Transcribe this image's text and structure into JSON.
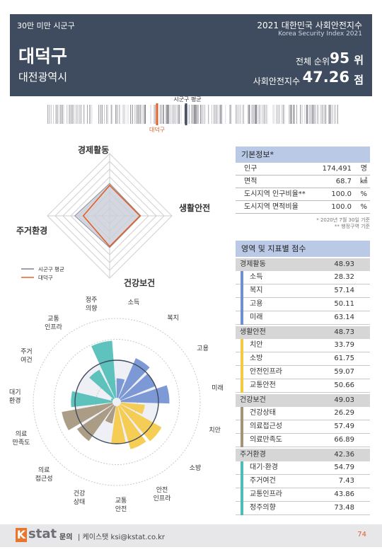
{
  "header": {
    "category": "30만 미만 시군구",
    "index_title": "2021 대한민국 사회안전지수",
    "index_subtitle": "Korea Security Index 2021",
    "district": "대덕구",
    "province": "대전광역시",
    "rank_label": "전체 순위",
    "rank": 95,
    "rank_unit": "위",
    "score_label": "사회안전지수",
    "score": 47.26,
    "score_unit": "점"
  },
  "strip": {
    "avg_label": "시군구 평균",
    "district_label": "대덕구"
  },
  "radar": {
    "max": 100,
    "rings": 8,
    "average": [
      52,
      50,
      51,
      56
    ],
    "average_color": "#c9cdd8",
    "district_color": "#e0622a"
  },
  "polar": {
    "max": 100,
    "average": 50,
    "labels": [
      [
        "소득"
      ],
      [
        "복지"
      ],
      [
        "고용"
      ],
      [
        "미래"
      ],
      [
        "치안"
      ],
      [
        "소방"
      ],
      [
        "안전",
        "인프라"
      ],
      [
        "교통",
        "안전"
      ],
      [
        "건강",
        "상태"
      ],
      [
        "의료",
        "접근성"
      ],
      [
        "의료",
        "만족도"
      ],
      [
        "대기",
        "환경"
      ],
      [
        "주거",
        "여건"
      ],
      [
        "교통",
        "인프라"
      ],
      [
        "정주",
        "의향"
      ]
    ]
  },
  "basic": {
    "title": "기본정보*",
    "rows": [
      [
        "인구",
        "174,491",
        "명"
      ],
      [
        "면적",
        "68.7",
        "㎢"
      ],
      [
        "도시지역 인구비율**",
        "100.0",
        "%"
      ],
      [
        "도시지역 면적비율",
        "100.0",
        "%"
      ]
    ],
    "notes": [
      "* 2020년 7월 30일 기준",
      "** 행정구역 기준"
    ]
  },
  "scores": {
    "title": "영역 및 지표별 점수",
    "domains": [
      {
        "name": "경제활동",
        "score": 48.93,
        "color": "#6f8fd2",
        "indicators": [
          {
            "name": "소득",
            "score": 28.32
          },
          {
            "name": "복지",
            "score": 57.14
          },
          {
            "name": "고용",
            "score": 50.11
          },
          {
            "name": "미래",
            "score": 63.14
          }
        ]
      },
      {
        "name": "생활안전",
        "score": 48.73,
        "color": "#f5c842",
        "indicators": [
          {
            "name": "치안",
            "score": 33.79
          },
          {
            "name": "소방",
            "score": 61.75
          },
          {
            "name": "안전인프라",
            "score": 59.07
          },
          {
            "name": "교통안전",
            "score": 50.66
          }
        ]
      },
      {
        "name": "건강보건",
        "score": 49.03,
        "color": "#a39379",
        "indicators": [
          {
            "name": "건강상태",
            "score": 26.29
          },
          {
            "name": "의료접근성",
            "score": 57.49
          },
          {
            "name": "의료만족도",
            "score": 66.89
          }
        ]
      },
      {
        "name": "주거환경",
        "score": 42.36,
        "color": "#4dbdb6",
        "indicators": [
          {
            "name": "대기·환경",
            "score": 54.79
          },
          {
            "name": "주거여건",
            "score": 7.43
          },
          {
            "name": "교통인프라",
            "score": 43.86
          },
          {
            "name": "정주의향",
            "score": 73.48
          }
        ]
      }
    ]
  },
  "footer": {
    "logo_k": "K",
    "logo_rest": "stat",
    "contact_label": "문의",
    "contact": "| 케이스탯 ksi@kstat.co.kr",
    "page": 74
  }
}
